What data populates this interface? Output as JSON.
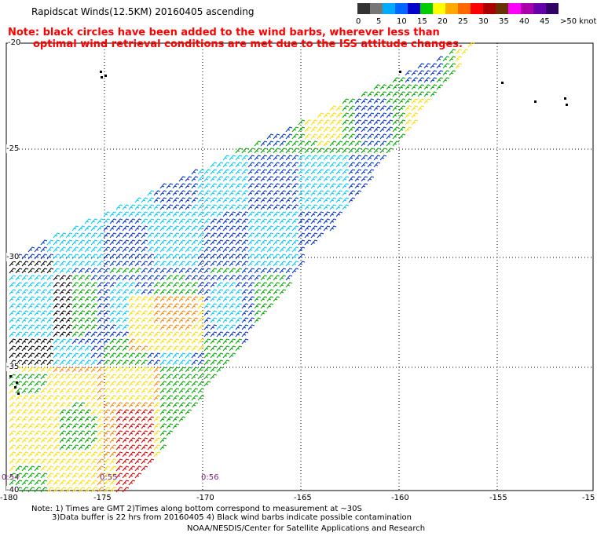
{
  "title": "Rapidscat Winds(12.5KM) 20160405 ascending",
  "note": {
    "line1": "Note: black circles have been added to the wind barbs, wherever less than",
    "line2": "optimal wind retrieval conditions are met due to the ISS attitude changes."
  },
  "color_scale": {
    "labels": [
      "0",
      "5",
      "10",
      "15",
      "20",
      "25",
      "30",
      "35",
      "40",
      "45",
      ">50 knots"
    ],
    "colors": [
      "#333333",
      "#777777",
      "#00aaff",
      "#0066ff",
      "#0000cc",
      "#00cc00",
      "#ffff00",
      "#ffaa00",
      "#ff6600",
      "#ff0000",
      "#aa0000",
      "#663300",
      "#ff00ff",
      "#aa00aa",
      "#6600aa",
      "#330066"
    ]
  },
  "map": {
    "lat_labels": [
      "-20",
      "-25",
      "-30",
      "-35",
      "-40"
    ],
    "lon_labels": [
      "-180",
      "-175",
      "-170",
      "-165",
      "-160",
      "-155",
      "-15"
    ],
    "time_labels": [
      "0:54",
      "0:55",
      "0:56"
    ],
    "grid": true,
    "barb_colors": {
      "calm_contaminated": "#000000",
      "light": "#00ccff",
      "moderate": "#0033cc",
      "fresh": "#00aa00",
      "strong": "#ffdd00",
      "gale": "#ff8800",
      "storm": "#dd0000"
    }
  },
  "footer": {
    "line1": "Note: 1) Times are GMT 2)Times along bottom correspond to measurement at ~30S",
    "line2": "3)Data buffer is 22 hrs from 20160405 4) Black wind barbs indicate possible contamination",
    "line3": "NOAA/NESDIS/Center for Satellite Applications and Research"
  }
}
